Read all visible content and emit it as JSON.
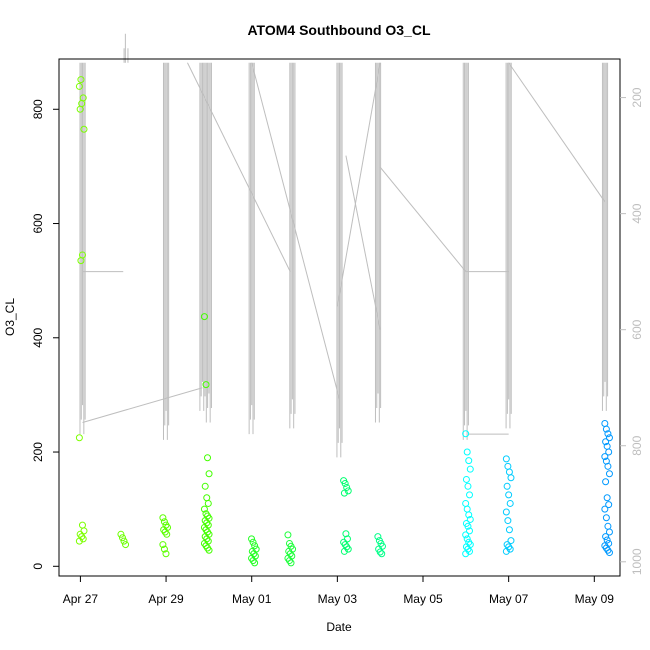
{
  "chart_data": {
    "type": "scatter",
    "title": "ATOM4 Southbound O3_CL",
    "xlabel": "Date",
    "ylabel": "O3_CL",
    "x_ticks": [
      {
        "day": 0,
        "label": "Apr 27"
      },
      {
        "day": 2,
        "label": "Apr 29"
      },
      {
        "day": 4,
        "label": "May 01"
      },
      {
        "day": 6,
        "label": "May 03"
      },
      {
        "day": 8,
        "label": "May 05"
      },
      {
        "day": 10,
        "label": "May 07"
      },
      {
        "day": 12,
        "label": "May 09"
      }
    ],
    "y_ticks": [
      0,
      200,
      400,
      600,
      800
    ],
    "y_range": [
      -17,
      888
    ],
    "right_axis": {
      "ticks": [
        200,
        400,
        600,
        800,
        1000
      ],
      "range": [
        1024.5,
        133.5
      ],
      "color": "#bebebe"
    },
    "x_range_days": [
      -0.5,
      12.6
    ],
    "pressure_trace_color": "#bebebe",
    "point_groups": [
      {
        "day": 0.03,
        "values": [
          225,
          535,
          545,
          765,
          800,
          810,
          820,
          840,
          852,
          72,
          62,
          56,
          52,
          48,
          44
        ],
        "color": "#7cff00"
      },
      {
        "day": 1.0,
        "values": [
          56,
          50,
          44,
          38
        ],
        "color": "#6cff00"
      },
      {
        "day": 1.98,
        "values": [
          85,
          78,
          72,
          68,
          64,
          60,
          56,
          38,
          30,
          22
        ],
        "color": "#5cff00"
      },
      {
        "day": 2.95,
        "values": [
          437,
          318,
          190,
          162,
          140,
          120,
          110,
          100,
          92,
          88,
          84,
          80,
          76,
          72,
          68,
          64,
          60,
          56,
          52,
          48,
          44,
          40,
          36,
          32,
          28
        ],
        "color": "#44ff00"
      },
      {
        "day": 4.05,
        "values": [
          48,
          42,
          36,
          30,
          26,
          22,
          18,
          14,
          10,
          6
        ],
        "color": "#22ff22"
      },
      {
        "day": 4.9,
        "values": [
          55,
          40,
          35,
          30,
          26,
          22,
          18,
          14,
          10,
          6
        ],
        "color": "#1cff3a"
      },
      {
        "day": 6.2,
        "values": [
          150,
          145,
          138,
          132,
          128,
          57,
          48,
          42,
          38,
          34,
          30,
          26
        ],
        "color": "#00ff70"
      },
      {
        "day": 7.0,
        "values": [
          52,
          45,
          40,
          35,
          30,
          25,
          22
        ],
        "color": "#00ff88"
      },
      {
        "day": 9.05,
        "values": [
          232,
          200,
          185,
          170,
          152,
          140,
          125,
          110,
          100,
          90,
          82,
          75,
          70,
          62,
          55,
          48,
          42,
          38,
          34,
          30,
          26,
          22
        ],
        "color": "#00ffff"
      },
      {
        "day": 10.0,
        "values": [
          188,
          175,
          165,
          155,
          140,
          125,
          110,
          95,
          80,
          64,
          45,
          38,
          34,
          30,
          26
        ],
        "color": "#00ccff"
      },
      {
        "day": 12.3,
        "values": [
          250,
          240,
          232,
          225,
          218,
          210,
          200,
          192,
          184,
          175,
          162,
          148,
          120,
          108,
          100,
          85,
          70,
          60,
          52,
          46,
          40,
          36,
          32,
          28,
          24
        ],
        "color": "#0099ff"
      }
    ],
    "pressure_profiles": [
      {
        "day": 0.05,
        "min_p": 780,
        "color": "#bebebe"
      },
      {
        "day": 1.05,
        "min_p": 140,
        "color": "#bebebe"
      },
      {
        "day": 2.0,
        "min_p": 790,
        "color": "#bebebe"
      },
      {
        "day": 2.85,
        "min_p": 740,
        "color": "#bebebe"
      },
      {
        "day": 3.0,
        "min_p": 760,
        "color": "#bebebe"
      },
      {
        "day": 4.0,
        "min_p": 780,
        "color": "#bebebe"
      },
      {
        "day": 4.95,
        "min_p": 770,
        "color": "#bebebe"
      },
      {
        "day": 6.05,
        "min_p": 820,
        "color": "#bebebe"
      },
      {
        "day": 6.95,
        "min_p": 760,
        "color": "#bebebe"
      },
      {
        "day": 9.0,
        "min_p": 790,
        "color": "#bebebe"
      },
      {
        "day": 10.0,
        "min_p": 770,
        "color": "#bebebe"
      },
      {
        "day": 12.25,
        "min_p": 740,
        "color": "#bebebe"
      }
    ],
    "pressure_transits": [
      {
        "d0": 0.05,
        "p0": 500,
        "d1": 1.0,
        "p1": 500
      },
      {
        "d0": 0.05,
        "p0": 760,
        "d1": 2.85,
        "p1": 700
      },
      {
        "d0": 2.5,
        "p0": 140,
        "d1": 4.9,
        "p1": 500
      },
      {
        "d0": 4.0,
        "p0": 140,
        "d1": 6.05,
        "p1": 720
      },
      {
        "d0": 6.0,
        "p0": 560,
        "d1": 7.0,
        "p1": 140
      },
      {
        "d0": 6.2,
        "p0": 300,
        "d1": 7.0,
        "p1": 600
      },
      {
        "d0": 7.0,
        "p0": 320,
        "d1": 9.0,
        "p1": 500
      },
      {
        "d0": 9.05,
        "p0": 780,
        "d1": 10.0,
        "p1": 780
      },
      {
        "d0": 9.0,
        "p0": 500,
        "d1": 10.0,
        "p1": 500
      },
      {
        "d0": 10.0,
        "p0": 140,
        "d1": 12.25,
        "p1": 380
      }
    ]
  }
}
